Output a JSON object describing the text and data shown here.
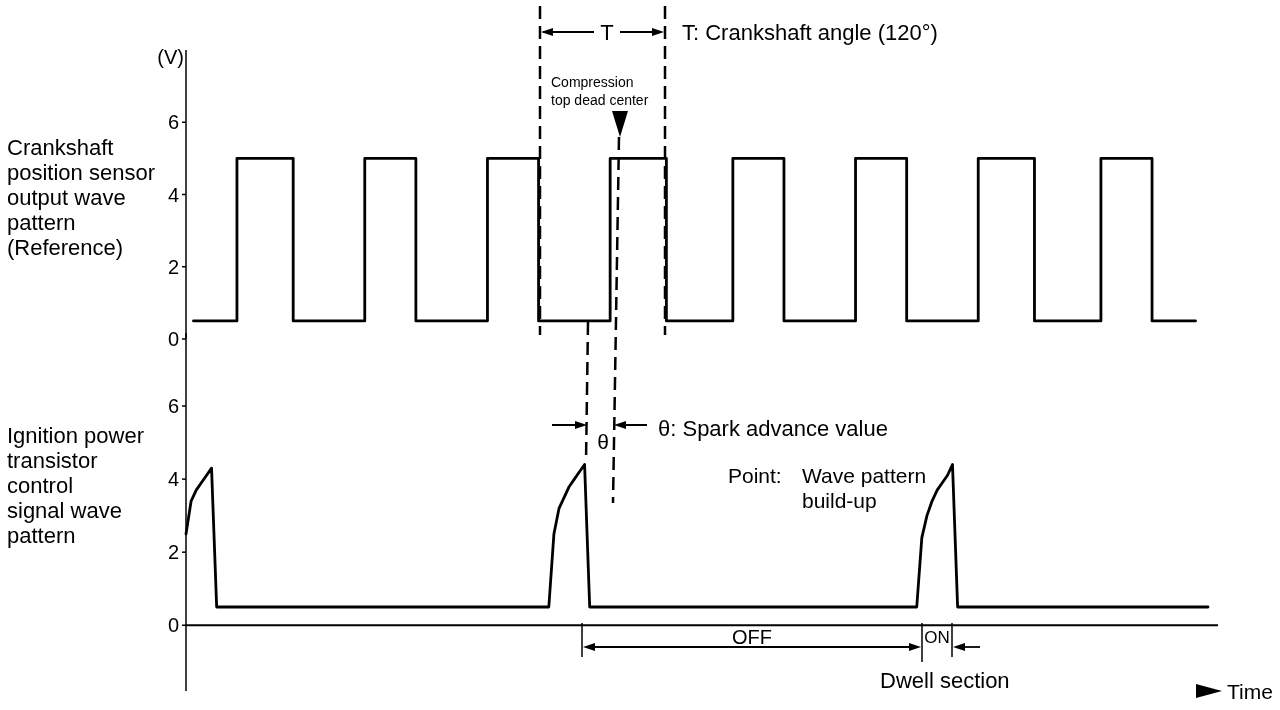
{
  "chart_data": [
    {
      "type": "step",
      "ylabel": "Crankshaft\nposition sensor\noutput wave\npattern\n(Reference)",
      "annotations": [
        "(V)",
        "T",
        "T: Crankshaft angle (120°)",
        "Compression\ntop dead center"
      ],
      "categories": [
        null,
        null,
        null,
        null,
        null,
        null,
        null,
        null,
        null,
        null,
        null,
        null,
        null,
        null,
        null,
        null,
        null,
        null,
        null,
        null,
        null,
        null,
        null,
        null,
        null,
        null,
        null,
        null,
        null,
        null,
        null,
        null,
        null,
        null,
        null,
        null,
        null,
        null,
        null,
        null,
        null,
        null,
        null,
        null,
        null,
        null,
        null,
        null,
        null,
        null,
        null,
        null,
        null,
        null,
        null,
        null,
        null,
        null,
        null,
        null,
        null,
        null,
        null,
        null,
        null,
        null,
        null,
        null,
        null,
        null,
        null,
        null,
        null,
        null,
        null,
        null,
        null,
        null,
        null,
        null,
        null,
        null,
        null,
        null,
        null,
        null,
        null,
        null,
        null,
        null,
        null,
        null,
        null,
        null,
        null,
        null,
        null,
        null,
        null,
        null,
        null,
        null,
        null,
        null,
        null,
        null,
        null,
        null,
        null,
        null,
        null,
        null,
        null,
        null,
        null,
        null,
        null,
        null,
        null,
        null,
        null,
        null,
        null,
        null,
        null,
        null,
        null,
        null,
        null,
        null,
        null,
        null,
        null,
        null,
        null,
        null,
        null,
        null,
        null,
        null,
        null,
        null,
        null,
        null,
        null,
        null,
        null,
        null,
        null,
        null,
        null,
        null,
        null,
        null,
        null,
        null,
        null,
        null,
        null,
        null,
        null,
        null,
        null,
        null,
        null,
        null,
        null,
        null,
        null,
        null,
        null,
        null,
        null,
        null,
        null,
        null,
        null,
        null,
        null,
        null,
        null,
        null,
        null,
        null,
        null,
        null,
        null,
        null,
        null,
        null,
        null,
        null,
        null,
        null,
        null,
        null,
        null
      ],
      "values": [
        0.5,
        0.5,
        0.5,
        0.5,
        0.5,
        0.5,
        0.5,
        0.5,
        0.5,
        5,
        5,
        5,
        5,
        5,
        5,
        5,
        5,
        5,
        5,
        5,
        0.5,
        0.5,
        0.5,
        0.5,
        0.5,
        0.5,
        0.5,
        0.5,
        0.5,
        0.5,
        0.5,
        0.5,
        0.5,
        0.5,
        5,
        5,
        5,
        5,
        5,
        5,
        5,
        5,
        5,
        5,
        0.5,
        0.5,
        0.5,
        0.5,
        0.5,
        0.5,
        0.5,
        0.5,
        0.5,
        0.5,
        0.5,
        0.5,
        0.5,
        0.5,
        5,
        5,
        5,
        5,
        5,
        5,
        5,
        5,
        5,
        5,
        0.5,
        0.5,
        0.5,
        0.5,
        0.5,
        0.5,
        0.5,
        0.5,
        0.5,
        0.5,
        0.5,
        0.5,
        0.5,
        0.5,
        5,
        5,
        5,
        5,
        5,
        5,
        5,
        5,
        5,
        5,
        5,
        0.5,
        0.5,
        0.5,
        0.5,
        0.5,
        0.5,
        0.5,
        0.5,
        0.5,
        0.5,
        0.5,
        0.5,
        0.5,
        5,
        5,
        5,
        5,
        5,
        5,
        5,
        5,
        5,
        5,
        0.5,
        0.5,
        0.5,
        0.5,
        0.5,
        0.5,
        0.5,
        0.5,
        0.5,
        0.5,
        0.5,
        0.5,
        0.5,
        0.5,
        5,
        5,
        5,
        5,
        5,
        5,
        5,
        5,
        5,
        5,
        0.5,
        0.5,
        0.5,
        0.5,
        0.5,
        0.5,
        0.5,
        0.5,
        0.5,
        0.5,
        0.5,
        0.5,
        0.5,
        0.5,
        5,
        5,
        5,
        5,
        5,
        5,
        5,
        5,
        5,
        5,
        5,
        0.5,
        0.5,
        0.5,
        0.5,
        0.5,
        0.5,
        0.5,
        0.5,
        0.5,
        0.5,
        0.5,
        0.5,
        0.5,
        5,
        5,
        5,
        5,
        5,
        5,
        5,
        5,
        5,
        5,
        0.5,
        0.5,
        0.5,
        0.5,
        0.5,
        0.5,
        0.5,
        0.5,
        0.5
      ],
      "color": "#000000",
      "ylim": [
        0,
        8
      ],
      "yticks": [
        0,
        2,
        4,
        6
      ],
      "tick_labels": "y",
      "marker": "none"
    },
    {
      "type": "line",
      "ylabel": "Ignition power\ntransistor\ncontrol\nsignal wave\npattern",
      "xlabel": "Time",
      "annotations": [
        "θ",
        "θ: Spark advance value",
        "Point:",
        "Wave pattern\nbuild-up",
        "OFF",
        "ON",
        "Dwell section"
      ],
      "categories": [
        null,
        null,
        null,
        null,
        null,
        null,
        null,
        null,
        null,
        null,
        null,
        null,
        null,
        null,
        null,
        null,
        null,
        null,
        null,
        null,
        null,
        null,
        null,
        null,
        null,
        null,
        null,
        null,
        null,
        null,
        null,
        null,
        null,
        null,
        null,
        null,
        null,
        null,
        null,
        null,
        null,
        null,
        null,
        null,
        null,
        null,
        null,
        null,
        null,
        null,
        null,
        null,
        null,
        null,
        null,
        null,
        null,
        null,
        null,
        null,
        null,
        null,
        null,
        null,
        null,
        null,
        null,
        null,
        null,
        null,
        null,
        null,
        null,
        null,
        null,
        null,
        null,
        null,
        null,
        null,
        null,
        null,
        null,
        null,
        null,
        null,
        null,
        null,
        null,
        null,
        null,
        null,
        null,
        null,
        null,
        null,
        null,
        null,
        null,
        null,
        null,
        null,
        null,
        null,
        null,
        null,
        null,
        null,
        null,
        null,
        null,
        null,
        null,
        null,
        null,
        null,
        null,
        null,
        null,
        null,
        null,
        null,
        null,
        null,
        null,
        null,
        null,
        null,
        null,
        null,
        null,
        null,
        null,
        null,
        null,
        null,
        null,
        null,
        null,
        null,
        null,
        null,
        null,
        null,
        null,
        null,
        null,
        null,
        null,
        null,
        null,
        null,
        null,
        null,
        null,
        null,
        null,
        null,
        null,
        null,
        null,
        null,
        null,
        null,
        null,
        null,
        null,
        null,
        null,
        null,
        null,
        null,
        null,
        null,
        null,
        null,
        null,
        null,
        null,
        null,
        null,
        null,
        null,
        null,
        null,
        null,
        null,
        null,
        null,
        null,
        null,
        null,
        null,
        null,
        null,
        null,
        null,
        null,
        null,
        null,
        null
      ],
      "values": [
        2.5,
        3.4,
        3.7,
        3.9,
        4.1,
        4.3,
        0.5,
        0.5,
        0.5,
        0.5,
        0.5,
        0.5,
        0.5,
        0.5,
        0.5,
        0.5,
        0.5,
        0.5,
        0.5,
        0.5,
        0.5,
        0.5,
        0.5,
        0.5,
        0.5,
        0.5,
        0.5,
        0.5,
        0.5,
        0.5,
        0.5,
        0.5,
        0.5,
        0.5,
        0.5,
        0.5,
        0.5,
        0.5,
        0.5,
        0.5,
        0.5,
        0.5,
        0.5,
        0.5,
        0.5,
        0.5,
        0.5,
        0.5,
        0.5,
        0.5,
        0.5,
        0.5,
        0.5,
        0.5,
        0.5,
        0.5,
        0.5,
        0.5,
        0.5,
        0.5,
        0.5,
        0.5,
        0.5,
        0.5,
        0.5,
        0.5,
        0.5,
        0.5,
        0.5,
        0.5,
        0.5,
        0.5,
        2.5,
        3.2,
        3.5,
        3.8,
        4.0,
        4.2,
        4.4,
        0.5,
        0.5,
        0.5,
        0.5,
        0.5,
        0.5,
        0.5,
        0.5,
        0.5,
        0.5,
        0.5,
        0.5,
        0.5,
        0.5,
        0.5,
        0.5,
        0.5,
        0.5,
        0.5,
        0.5,
        0.5,
        0.5,
        0.5,
        0.5,
        0.5,
        0.5,
        0.5,
        0.5,
        0.5,
        0.5,
        0.5,
        0.5,
        0.5,
        0.5,
        0.5,
        0.5,
        0.5,
        0.5,
        0.5,
        0.5,
        0.5,
        0.5,
        0.5,
        0.5,
        0.5,
        0.5,
        0.5,
        0.5,
        0.5,
        0.5,
        0.5,
        0.5,
        0.5,
        0.5,
        0.5,
        0.5,
        0.5,
        0.5,
        0.5,
        0.5,
        0.5,
        0.5,
        0.5,
        0.5,
        0.5,
        2.4,
        3.0,
        3.4,
        3.7,
        3.9,
        4.1,
        4.4,
        0.5,
        0.5,
        0.5,
        0.5,
        0.5,
        0.5,
        0.5,
        0.5,
        0.5,
        0.5,
        0.5,
        0.5,
        0.5,
        0.5,
        0.5,
        0.5,
        0.5,
        0.5,
        0.5,
        0.5,
        0.5,
        0.5,
        0.5,
        0.5,
        0.5,
        0.5,
        0.5,
        0.5,
        0.5,
        0.5,
        0.5,
        0.5,
        0.5,
        0.5,
        0.5,
        0.5,
        0.5,
        0.5,
        0.5,
        0.5,
        0.5,
        0.5,
        0.5,
        0.5,
        0.5,
        0.5,
        0.5,
        0.5,
        0.5,
        0.5
      ],
      "color": "#000000",
      "ylim": [
        -1.8,
        8
      ],
      "yticks": [
        0,
        2,
        4,
        6
      ],
      "ref_lines": [
        {
          "axis": "y",
          "value": 0
        }
      ],
      "tick_labels": "y",
      "marker": "none"
    }
  ]
}
